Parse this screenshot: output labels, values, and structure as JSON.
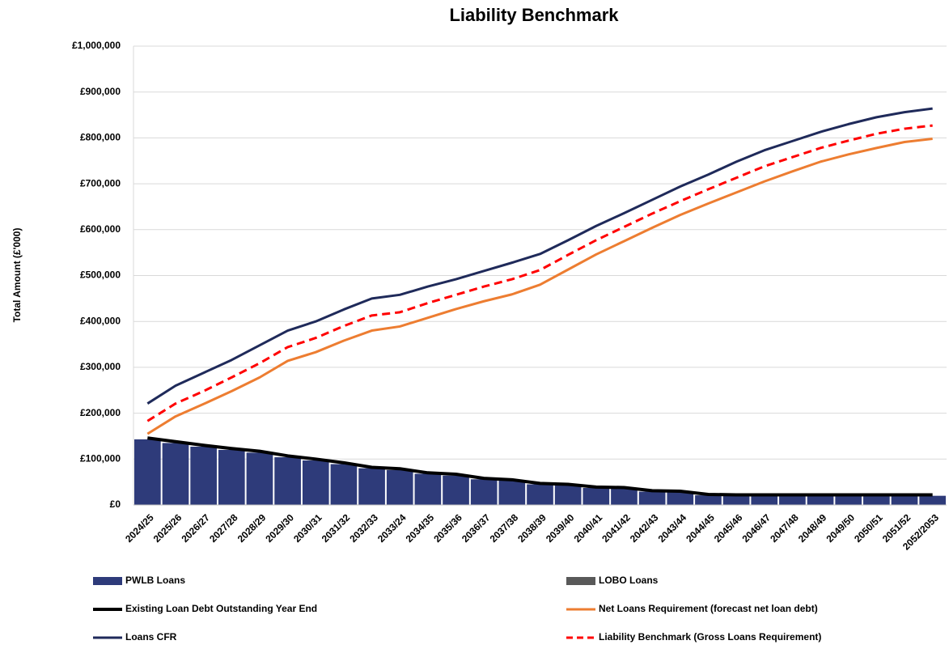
{
  "chart_data": {
    "type": "combo",
    "title": "Liability Benchmark",
    "y_label": "Total Amount (£'000)",
    "grid": true,
    "categories": [
      "2024/25",
      "2025/26",
      "2026/27",
      "2027/28",
      "2028/29",
      "2029/30",
      "2030/31",
      "2031/32",
      "2032/33",
      "2033/24",
      "2034/35",
      "2035/36",
      "2036/37",
      "2037/38",
      "2038/39",
      "2039/40",
      "2040/41",
      "2041/42",
      "2042/43",
      "2043/44",
      "2044/45",
      "2045/46",
      "2046/47",
      "2047/48",
      "2048/49",
      "2049/50",
      "2050/51",
      "2051/52",
      "2052/2053"
    ],
    "ylim": [
      0,
      1000000
    ],
    "yticks": [
      {
        "value": 0,
        "label": "£0"
      },
      {
        "value": 100000,
        "label": "£100,000"
      },
      {
        "value": 200000,
        "label": "£200,000"
      },
      {
        "value": 300000,
        "label": "£300,000"
      },
      {
        "value": 400000,
        "label": "£400,000"
      },
      {
        "value": 500000,
        "label": "£500,000"
      },
      {
        "value": 600000,
        "label": "£600,000"
      },
      {
        "value": 700000,
        "label": "£700,000"
      },
      {
        "value": 800000,
        "label": "£800,000"
      },
      {
        "value": 900000,
        "label": "£900,000"
      },
      {
        "value": 1000000,
        "label": "£1,000,000"
      }
    ],
    "series": [
      {
        "name": "PWLB Loans",
        "kind": "bar",
        "color": "#2e3b7a",
        "values": [
          143000,
          135000,
          127000,
          120000,
          114000,
          104000,
          97000,
          89000,
          80000,
          76000,
          68000,
          64000,
          56000,
          53000,
          45000,
          43000,
          37000,
          36000,
          29000,
          28000,
          21000,
          20000,
          20000,
          20000,
          20000,
          20000,
          20000,
          20000,
          20000
        ]
      },
      {
        "name": "LOBO Loans",
        "kind": "bar",
        "color": "#595959",
        "values": [
          0,
          0,
          0,
          0,
          0,
          0,
          0,
          0,
          0,
          0,
          0,
          0,
          0,
          0,
          0,
          0,
          0,
          0,
          0,
          0,
          0,
          0,
          0,
          0,
          0,
          0,
          0,
          0,
          0
        ]
      },
      {
        "name": "Existing Loan Debt Outstanding Year End",
        "kind": "line",
        "color": "#000000",
        "width": 4,
        "values": [
          146000,
          138000,
          130000,
          123000,
          117000,
          107000,
          100000,
          92000,
          82000,
          79000,
          70000,
          67000,
          58000,
          55000,
          47000,
          45000,
          39000,
          38000,
          31000,
          30000,
          23000,
          22000,
          22000,
          22000,
          22000,
          22000,
          22000,
          22000,
          22000
        ]
      },
      {
        "name": "Net Loans Requirement (forecast net loan debt)",
        "kind": "line",
        "color": "#ed7d31",
        "width": 3,
        "values": [
          155000,
          193000,
          220000,
          248000,
          278000,
          314000,
          333000,
          358000,
          380000,
          389000,
          408000,
          427000,
          444000,
          459000,
          480000,
          513000,
          546000,
          575000,
          604000,
          632000,
          657000,
          681000,
          705000,
          727000,
          748000,
          764000,
          778000,
          791000,
          798000
        ]
      },
      {
        "name": "Loans CFR",
        "kind": "line",
        "color": "#1f2a5a",
        "width": 3,
        "values": [
          221000,
          260000,
          288000,
          316000,
          348000,
          380000,
          400000,
          426000,
          450000,
          458000,
          476000,
          492000,
          510000,
          528000,
          547000,
          577000,
          608000,
          636000,
          665000,
          694000,
          720000,
          748000,
          773000,
          793000,
          813000,
          830000,
          845000,
          856000,
          864000
        ]
      },
      {
        "name": "Liability Benchmark (Gross Loans Requirement)",
        "kind": "line",
        "color": "#ff0000",
        "width": 3,
        "dashed": true,
        "values": [
          183000,
          221000,
          248000,
          278000,
          309000,
          344000,
          364000,
          390000,
          413000,
          420000,
          440000,
          458000,
          476000,
          492000,
          512000,
          545000,
          577000,
          606000,
          635000,
          662000,
          688000,
          713000,
          738000,
          758000,
          778000,
          794000,
          809000,
          820000,
          827000
        ]
      }
    ]
  }
}
